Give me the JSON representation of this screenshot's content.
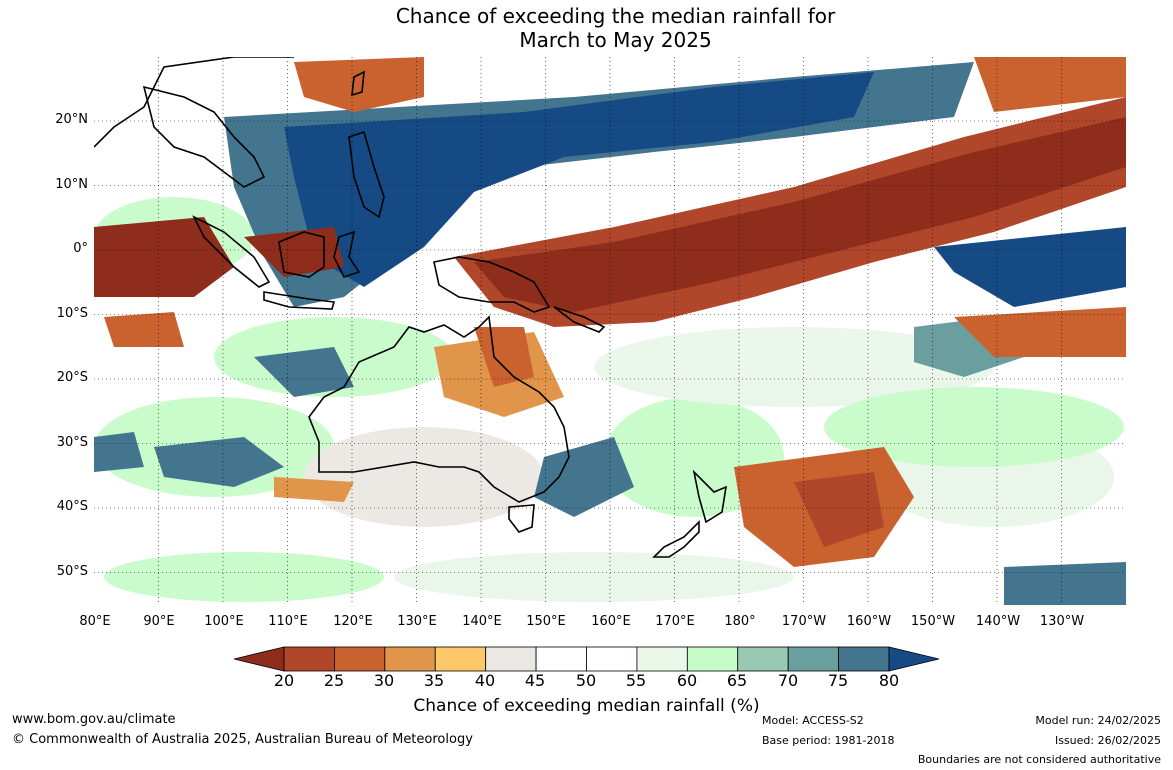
{
  "title": {
    "line1": "Chance of exceeding the median rainfall for",
    "line2": "March to May 2025"
  },
  "map": {
    "lat_labels": [
      "20°N",
      "10°N",
      "0°",
      "10°S",
      "20°S",
      "30°S",
      "40°S",
      "50°S"
    ],
    "lon_labels": [
      "80°E",
      "90°E",
      "100°E",
      "110°E",
      "120°E",
      "130°E",
      "140°E",
      "150°E",
      "160°E",
      "170°E",
      "180°",
      "170°W",
      "160°W",
      "150°W",
      "140°W",
      "130°W"
    ],
    "bounds": {
      "lon_min": 80,
      "lon_max": 240,
      "lat_min": -55,
      "lat_max": 30
    }
  },
  "colorbar": {
    "ticks": [
      "20",
      "25",
      "30",
      "35",
      "40",
      "45",
      "50",
      "55",
      "60",
      "65",
      "70",
      "75",
      "80"
    ],
    "colors": [
      "#8e2d1c",
      "#b0462a",
      "#c9622f",
      "#e0954b",
      "#fcc868",
      "#ebe7e2",
      "#ffffff",
      "#ffffff",
      "#e9f6e8",
      "#c4fbc6",
      "#99c9b3",
      "#6a9e9f",
      "#43758f",
      "#164a84"
    ],
    "label": "Chance of exceeding median rainfall (%)"
  },
  "footer": {
    "url": "www.bom.gov.au/climate",
    "copyright": "© Commonwealth of Australia 2025, Australian Bureau of Meteorology",
    "model": "Model: ACCESS-S2",
    "base_period": "Base period: 1981-2018",
    "model_run": "Model run: 24/02/2025",
    "issued": "Issued: 26/02/2025",
    "disclaimer": "Boundaries are not considered authoritative"
  }
}
